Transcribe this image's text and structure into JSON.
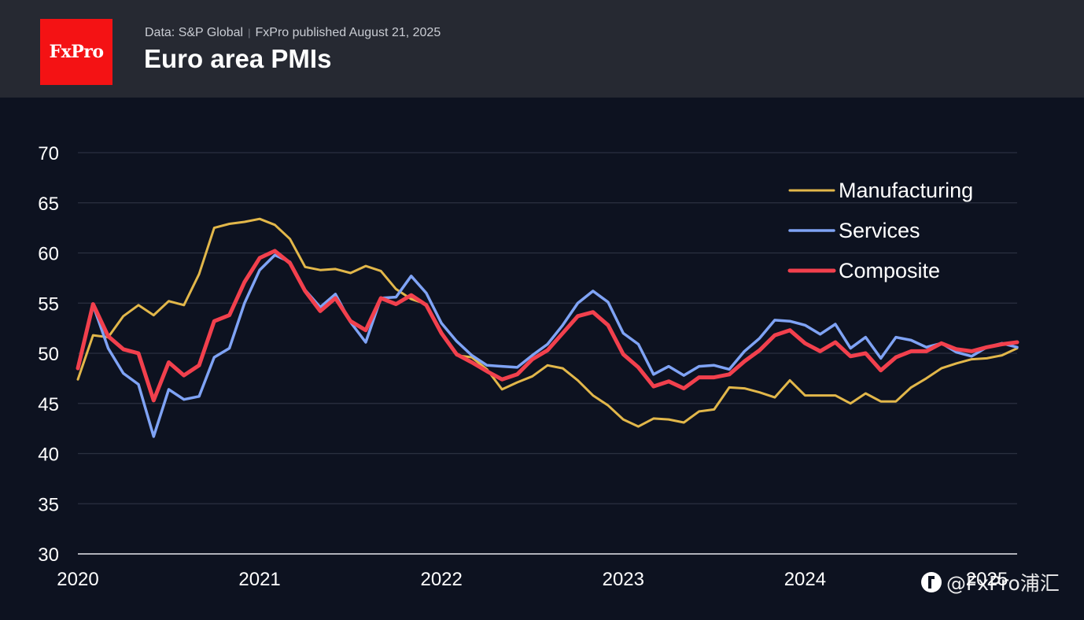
{
  "header": {
    "logo_text": "FxPro",
    "source": "Data: S&P Global",
    "separator": "|",
    "published": "FxPro published August 21, 2025",
    "title": "Euro area PMIs"
  },
  "watermark": {
    "text": "@FxPro浦汇",
    "icon": "weibo-icon"
  },
  "colors": {
    "header_bg": "#262932",
    "chart_bg": "#0d1220",
    "manufacturing": "#e2b74a",
    "services": "#7fa3f5",
    "composite": "#f2404d",
    "logo_bg": "#f41214"
  },
  "chart_data": {
    "type": "line",
    "title": "Euro area PMIs",
    "xlabel": "",
    "ylabel": "",
    "ylim": [
      30,
      70
    ],
    "yticks": [
      30,
      35,
      40,
      45,
      50,
      55,
      60,
      65,
      70
    ],
    "xlim": [
      "2020-01",
      "2025-03"
    ],
    "xticks": [
      "2020",
      "2021",
      "2022",
      "2023",
      "2024",
      "2025"
    ],
    "grid": true,
    "legend_position": "top-right",
    "x": [
      "2020-01",
      "2020-02",
      "2020-03",
      "2020-04",
      "2020-05",
      "2020-06",
      "2020-07",
      "2020-08",
      "2020-09",
      "2020-10",
      "2020-11",
      "2020-12",
      "2021-01",
      "2021-02",
      "2021-03",
      "2021-04",
      "2021-05",
      "2021-06",
      "2021-07",
      "2021-08",
      "2021-09",
      "2021-10",
      "2021-11",
      "2021-12",
      "2022-01",
      "2022-02",
      "2022-03",
      "2022-04",
      "2022-05",
      "2022-06",
      "2022-07",
      "2022-08",
      "2022-09",
      "2022-10",
      "2022-11",
      "2022-12",
      "2023-01",
      "2023-02",
      "2023-03",
      "2023-04",
      "2023-05",
      "2023-06",
      "2023-07",
      "2023-08",
      "2023-09",
      "2023-10",
      "2023-11",
      "2023-12",
      "2024-01",
      "2024-02",
      "2024-03",
      "2024-04",
      "2024-05",
      "2024-06",
      "2024-07",
      "2024-08",
      "2024-09",
      "2024-10",
      "2024-11",
      "2024-12",
      "2025-01",
      "2025-02",
      "2025-03"
    ],
    "series": [
      {
        "name": "Manufacturing",
        "color": "#e2b74a",
        "values": [
          47.4,
          51.8,
          51.6,
          53.7,
          54.8,
          53.8,
          55.2,
          54.8,
          57.9,
          62.5,
          62.9,
          63.1,
          63.4,
          62.8,
          61.4,
          58.6,
          58.3,
          58.4,
          58.0,
          58.7,
          58.2,
          56.4,
          55.4,
          54.9,
          52.1,
          49.8,
          49.6,
          48.4,
          46.4,
          47.1,
          47.7,
          48.8,
          48.5,
          47.3,
          45.8,
          44.8,
          43.4,
          42.7,
          43.5,
          43.4,
          43.1,
          44.2,
          44.4,
          46.6,
          46.5,
          46.1,
          45.6,
          47.3,
          45.8,
          45.8,
          45.8,
          45.0,
          46.0,
          45.2,
          45.2,
          46.6,
          47.5,
          48.5,
          49.0,
          49.4,
          49.5,
          49.8,
          50.5
        ]
      },
      {
        "name": "Services",
        "color": "#7fa3f5",
        "values": [
          48.5,
          54.8,
          50.5,
          48.0,
          46.9,
          41.7,
          46.4,
          45.4,
          45.7,
          49.6,
          50.5,
          55.0,
          58.3,
          59.8,
          59.1,
          56.3,
          54.6,
          55.9,
          53.1,
          51.1,
          55.5,
          55.6,
          57.7,
          56.0,
          53.0,
          51.2,
          49.8,
          48.8,
          48.7,
          48.6,
          49.8,
          50.9,
          52.8,
          55.0,
          56.2,
          55.1,
          52.0,
          50.9,
          47.9,
          48.7,
          47.8,
          48.7,
          48.8,
          48.4,
          50.2,
          51.5,
          53.3,
          53.2,
          52.8,
          51.9,
          52.9,
          50.5,
          51.6,
          49.5,
          51.6,
          51.3,
          50.6,
          51.0,
          50.1,
          49.7,
          50.6,
          51.0,
          50.6
        ]
      },
      {
        "name": "Composite",
        "color": "#f2404d",
        "values": [
          48.5,
          54.9,
          51.7,
          50.4,
          50.0,
          45.3,
          49.1,
          47.8,
          48.8,
          53.2,
          53.8,
          57.1,
          59.5,
          60.2,
          59.0,
          56.2,
          54.2,
          55.5,
          53.2,
          52.3,
          55.5,
          54.9,
          55.8,
          54.8,
          52.0,
          49.9,
          49.1,
          48.2,
          47.4,
          47.9,
          49.4,
          50.3,
          52.0,
          53.7,
          54.1,
          52.8,
          49.9,
          48.6,
          46.7,
          47.2,
          46.5,
          47.6,
          47.6,
          47.9,
          49.2,
          50.3,
          51.8,
          52.3,
          51.0,
          50.2,
          51.1,
          49.7,
          50.0,
          48.3,
          49.6,
          50.2,
          50.2,
          51.0,
          50.4,
          50.2,
          50.6,
          50.9,
          51.1
        ]
      }
    ]
  }
}
